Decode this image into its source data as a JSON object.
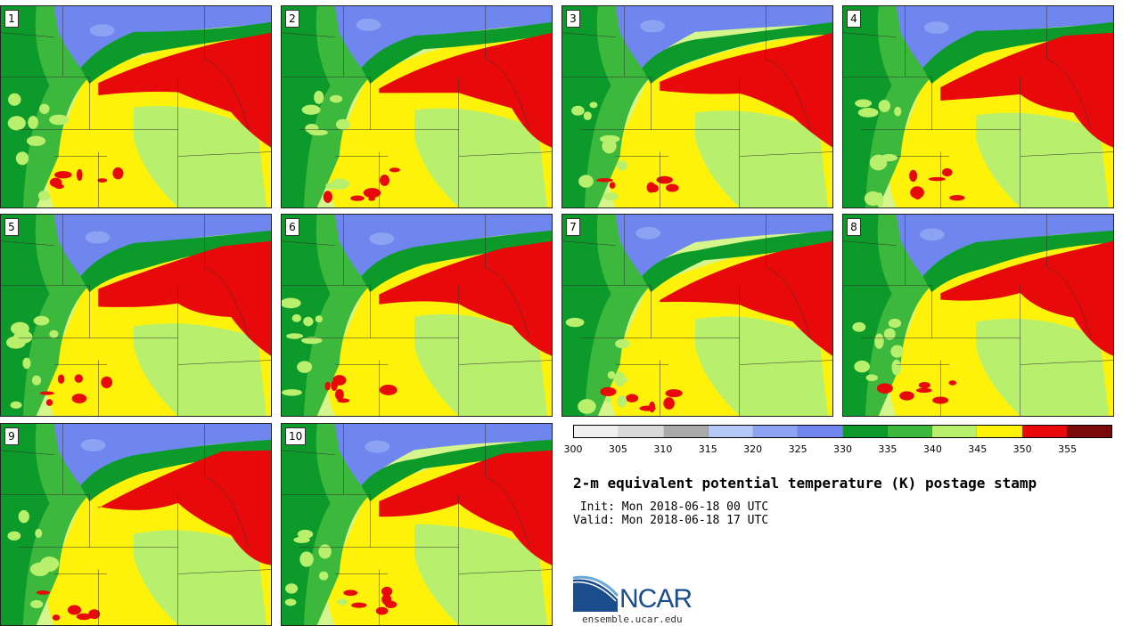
{
  "panels": [
    {
      "label": "1"
    },
    {
      "label": "2"
    },
    {
      "label": "3"
    },
    {
      "label": "4"
    },
    {
      "label": "5"
    },
    {
      "label": "6"
    },
    {
      "label": "7"
    },
    {
      "label": "8"
    },
    {
      "label": "9"
    },
    {
      "label": "10"
    }
  ],
  "colorbar": {
    "ticks": [
      "300",
      "305",
      "310",
      "315",
      "320",
      "325",
      "330",
      "335",
      "340",
      "345",
      "350",
      "355"
    ],
    "colors": [
      "#f0f0f0",
      "#d9d9d9",
      "#aaaaaa",
      "#b4c8f8",
      "#8ca2f2",
      "#6f86ee",
      "#0c9a2a",
      "#3cb83c",
      "#b8f06e",
      "#fff20a",
      "#e80a0a",
      "#7a0a0a"
    ]
  },
  "title": "2-m equivalent potential temperature (K) postage stamp",
  "init_line": " Init: Mon 2018-06-18 00 UTC",
  "valid_line": "Valid: Mon 2018-06-18 17 UTC",
  "logo": {
    "name": "NCAR",
    "url": "ensemble.ucar.edu",
    "colors": {
      "blue": "#1b4d8c",
      "light": "#6aa8d8"
    }
  }
}
